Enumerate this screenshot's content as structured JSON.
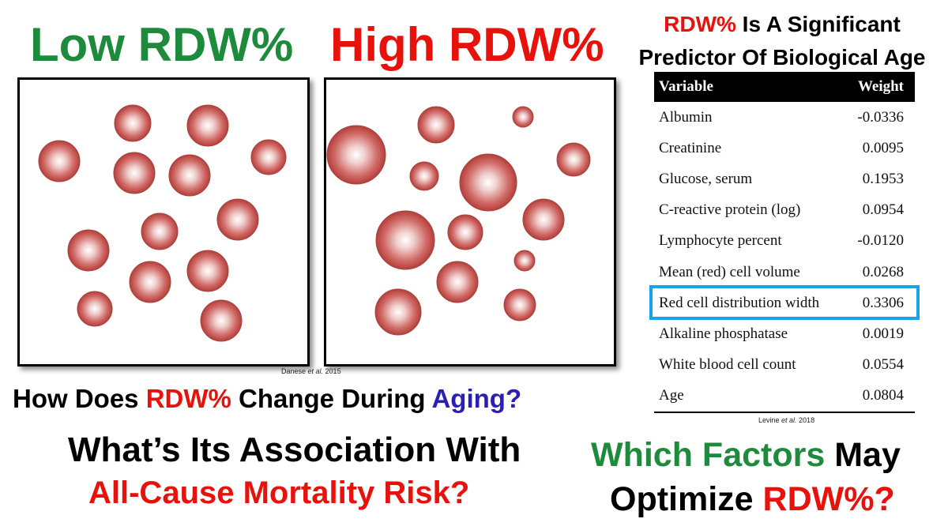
{
  "colors": {
    "green": "#1e8a3c",
    "red": "#e8120c",
    "blue": "#2a1fb4",
    "black": "#000000",
    "highlight": "#1aa3e6",
    "cell": "#c9534f"
  },
  "headings": {
    "low": "Low RDW%",
    "high": "High RDW%"
  },
  "predictor_title": {
    "red_part": "RDW%",
    "line1_rest": " Is A Significant",
    "line2": "Predictor Of Biological Age"
  },
  "citations": {
    "danese_name": "Danese ",
    "danese_etal": "et al.",
    "danese_year": " 2015",
    "levine_name": "Levine ",
    "levine_etal": "et al.",
    "levine_year": " 2018"
  },
  "table": {
    "headers": [
      "Variable",
      "Weight"
    ],
    "rows": [
      [
        "Albumin",
        "-0.0336"
      ],
      [
        "Creatinine",
        "0.0095"
      ],
      [
        "Glucose, serum",
        "0.1953"
      ],
      [
        "C-reactive protein (log)",
        "0.0954"
      ],
      [
        "Lymphocyte percent",
        "-0.0120"
      ],
      [
        "Mean (red) cell volume",
        "0.0268"
      ],
      [
        "Red cell distribution width",
        "0.3306"
      ],
      [
        "Alkaline phosphatase",
        "0.0019"
      ],
      [
        "White blood cell count",
        "0.0554"
      ],
      [
        "Age",
        "0.0804"
      ]
    ]
  },
  "questions": {
    "change": {
      "part1": "How Does ",
      "part2": "RDW%",
      "part3": " Change During ",
      "part4": "Aging?"
    },
    "association": {
      "line1": "What’s Its Association With",
      "line2": "All-Cause Mortality Risk?"
    },
    "factors": {
      "part1": "Which Factors",
      "part2": " May",
      "part3": "Optimize ",
      "part4": "RDW%?"
    }
  }
}
